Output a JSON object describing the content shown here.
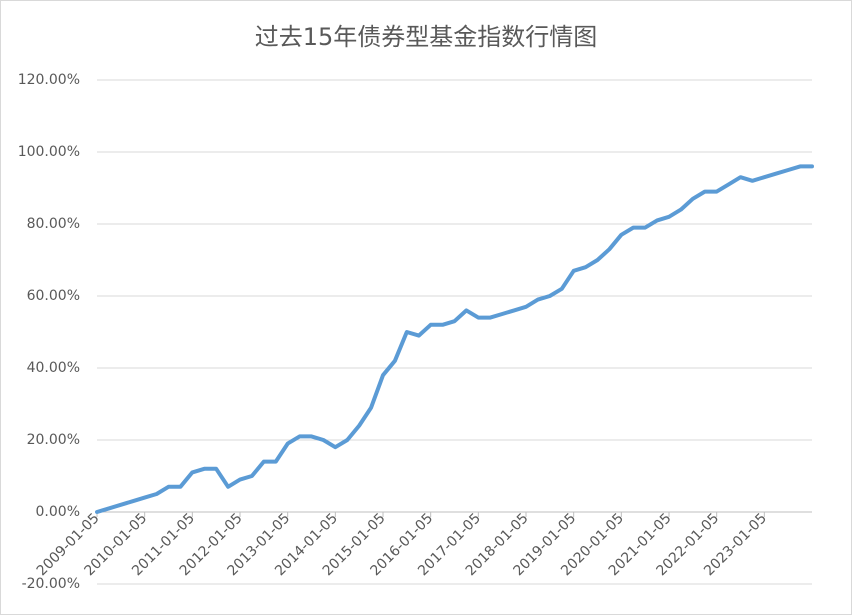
{
  "chart_data": {
    "type": "line",
    "title": "过去15年债券型基金指数行情图",
    "categories": [
      "2009-01-05",
      null,
      null,
      null,
      "2010-01-05",
      null,
      null,
      null,
      "2011-01-05",
      null,
      null,
      null,
      "2012-01-05",
      null,
      null,
      null,
      "2013-01-05",
      null,
      null,
      null,
      "2014-01-05",
      null,
      null,
      null,
      "2015-01-05",
      null,
      null,
      null,
      "2016-01-05",
      null,
      null,
      null,
      "2017-01-05",
      null,
      null,
      null,
      "2018-01-05",
      null,
      null,
      null,
      "2019-01-05",
      null,
      null,
      null,
      "2020-01-05",
      null,
      null,
      null,
      "2021-01-05",
      null,
      null,
      null,
      "2022-01-05",
      null,
      null,
      null,
      "2023-01-05",
      null,
      null,
      null,
      null
    ],
    "series": [
      {
        "color": "#5b9bd5",
        "values": [
          0,
          1,
          2,
          3,
          4,
          5,
          7,
          7,
          11,
          12,
          12,
          7,
          9,
          10,
          14,
          14,
          19,
          21,
          21,
          20,
          18,
          20,
          24,
          29,
          38,
          42,
          50,
          49,
          52,
          52,
          53,
          56,
          54,
          54,
          55,
          56,
          57,
          59,
          60,
          62,
          67,
          68,
          70,
          73,
          77,
          79,
          79,
          81,
          82,
          84,
          87,
          89,
          89,
          91,
          93,
          92,
          93,
          94,
          95,
          96,
          96
        ]
      }
    ],
    "ylim": [
      -20,
      120
    ],
    "yticks": [
      {
        "value": -20,
        "label": "-20.00%"
      },
      {
        "value": 0,
        "label": "0.00%"
      },
      {
        "value": 20,
        "label": "20.00%"
      },
      {
        "value": 40,
        "label": "40.00%"
      },
      {
        "value": 60,
        "label": "60.00%"
      },
      {
        "value": 80,
        "label": "80.00%"
      },
      {
        "value": 100,
        "label": "100.00%"
      },
      {
        "value": 120,
        "label": "120.00%"
      }
    ],
    "grid": true
  }
}
